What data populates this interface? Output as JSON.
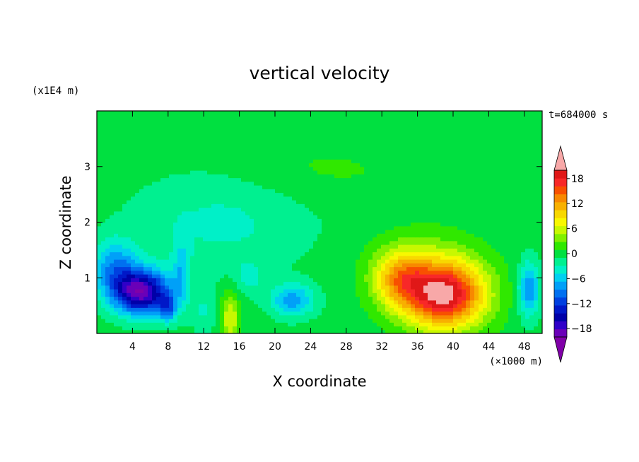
{
  "chart_data": {
    "type": "heatmap",
    "title": "vertical velocity",
    "xlabel": "X coordinate",
    "ylabel": "Z coordinate",
    "x_unit": "(×1000 m)",
    "y_unit": "(x1E4 m)",
    "time_label": "t=684000 s",
    "xlim": [
      0,
      50
    ],
    "ylim": [
      0,
      4
    ],
    "x_ticks": [
      "4",
      "8",
      "12",
      "16",
      "20",
      "24",
      "28",
      "32",
      "36",
      "40",
      "44",
      "48"
    ],
    "x_tick_values": [
      4,
      8,
      12,
      16,
      20,
      24,
      28,
      32,
      36,
      40,
      44,
      48
    ],
    "y_ticks": [
      "1",
      "2",
      "3"
    ],
    "y_tick_values": [
      1,
      2,
      3
    ],
    "colorbar": {
      "labels": [
        "18",
        "12",
        "6",
        "0",
        "−6",
        "−12",
        "−18"
      ],
      "label_values": [
        18,
        12,
        6,
        0,
        -6,
        -12,
        -18
      ],
      "levels": [
        -22,
        -20,
        -18,
        -16,
        -14,
        -12,
        -10,
        -8,
        -6,
        -4,
        -2,
        0,
        2,
        4,
        6,
        8,
        10,
        12,
        14,
        16,
        18,
        20,
        22
      ],
      "colors": [
        "#8000a8",
        "#6a00b8",
        "#3000c8",
        "#0000a8",
        "#0018c8",
        "#0040e0",
        "#0070f0",
        "#00a0f8",
        "#00d0f0",
        "#00f0c8",
        "#00f090",
        "#00e040",
        "#30e800",
        "#80f000",
        "#c8f800",
        "#f8f800",
        "#f8d800",
        "#f8b000",
        "#f88800",
        "#f85000",
        "#f82828",
        "#e01818",
        "#f8a8a8"
      ]
    },
    "features": [
      {
        "x": 5,
        "z": 0.75,
        "sx": 3.2,
        "sz": 0.4,
        "w": -20
      },
      {
        "x": 8,
        "z": 0.45,
        "sx": 1.0,
        "sz": 0.25,
        "w": -8
      },
      {
        "x": 2,
        "z": 1.2,
        "sx": 2.5,
        "sz": 0.5,
        "w": -8
      },
      {
        "x": 9.5,
        "z": 1.1,
        "sx": 1.0,
        "sz": 0.6,
        "w": -5
      },
      {
        "x": 22,
        "z": 0.6,
        "sx": 2.5,
        "sz": 0.3,
        "w": -8
      },
      {
        "x": 17,
        "z": 1.0,
        "sx": 1.8,
        "sz": 0.3,
        "w": -3
      },
      {
        "x": 12,
        "z": 0.4,
        "sx": 1.5,
        "sz": 0.4,
        "w": -3
      },
      {
        "x": 48.5,
        "z": 0.8,
        "sx": 1.2,
        "sz": 0.5,
        "w": -9
      },
      {
        "x": 15,
        "z": 0.3,
        "sx": 1.0,
        "sz": 0.5,
        "w": 7
      },
      {
        "x": 39,
        "z": 0.7,
        "sx": 4.5,
        "sz": 0.6,
        "w": 21
      },
      {
        "x": 34,
        "z": 1.0,
        "sx": 3.0,
        "sz": 0.5,
        "w": 10
      },
      {
        "x": 37,
        "z": 1.5,
        "sx": 6.5,
        "sz": 0.9,
        "w": 3
      },
      {
        "x": 37,
        "z": 2.0,
        "sx": 8.0,
        "sz": 0.6,
        "w": -1.5
      },
      {
        "x": 14,
        "z": 2.0,
        "sx": 10.0,
        "sz": 0.9,
        "w": -3.5
      },
      {
        "x": 25,
        "z": 3.0,
        "sx": 10.0,
        "sz": 0.6,
        "w": 1.5
      },
      {
        "x": 25,
        "z": 3.7,
        "sx": 20.0,
        "sz": 0.5,
        "w": -0.8
      }
    ]
  }
}
